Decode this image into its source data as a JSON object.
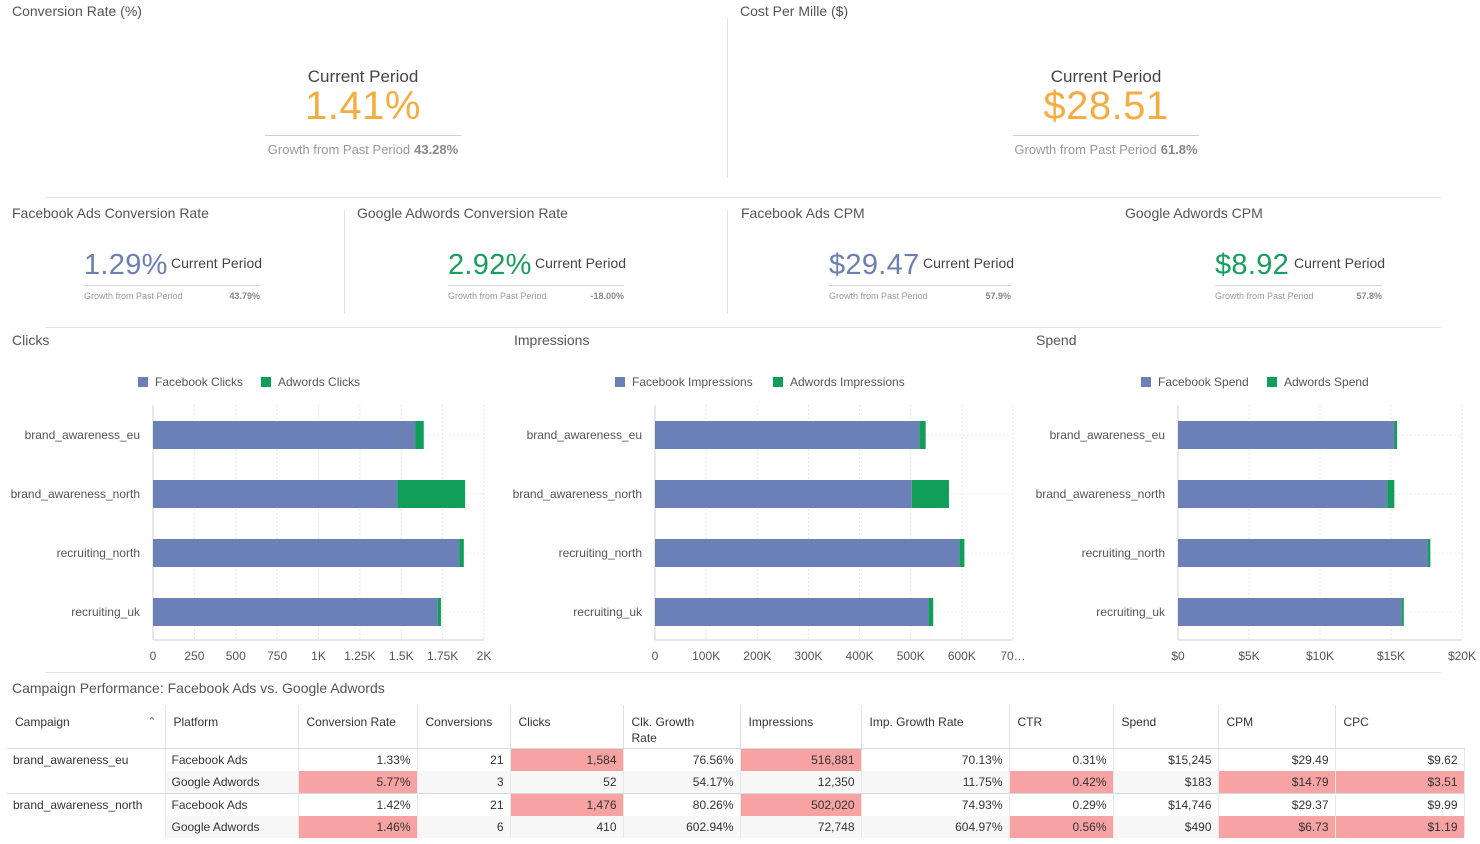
{
  "kpis_large": [
    {
      "title": "Conversion Rate (%)",
      "label": "Current Period",
      "value": "1.41%",
      "growth_label": "Growth from Past Period",
      "growth_value": "43.28%"
    },
    {
      "title": "Cost Per Mille ($)",
      "label": "Current Period",
      "value": "$28.51",
      "growth_label": "Growth from Past Period",
      "growth_value": "61.8%"
    }
  ],
  "kpis_small": [
    {
      "title": "Facebook Ads Conversion Rate",
      "value": "1.29%",
      "label": "Current Period",
      "growth_label": "Growth from Past Period",
      "growth_value": "43.79%",
      "color": "#6b7fb5"
    },
    {
      "title": "Google Adwords Conversion Rate",
      "value": "2.92%",
      "label": "Current Period",
      "growth_label": "Growth from Past Period",
      "growth_value": "-18.00%",
      "color": "#17a05a"
    },
    {
      "title": "Facebook Ads CPM",
      "value": "$29.47",
      "label": "Current Period",
      "growth_label": "Growth from Past Period",
      "growth_value": "57.9%",
      "color": "#6b7fb5"
    },
    {
      "title": "Google Adwords CPM",
      "value": "$8.92",
      "label": "Current Period",
      "growth_label": "Growth from Past Period",
      "growth_value": "57.8%",
      "color": "#17a05a"
    }
  ],
  "colors": {
    "facebook": "#6b80b6",
    "adwords": "#109e58",
    "accent": "#f5ad42",
    "highlight": "#f7a3a3"
  },
  "chart_data": [
    {
      "type": "bar",
      "orientation": "horizontal",
      "stacked": true,
      "title": "Clicks",
      "categories": [
        "brand_awareness_eu",
        "brand_awareness_north",
        "recruiting_north",
        "recruiting_uk"
      ],
      "series": [
        {
          "name": "Facebook Clicks",
          "values": [
            1584,
            1476,
            1850,
            1720
          ]
        },
        {
          "name": "Adwords Clicks",
          "values": [
            52,
            410,
            28,
            20
          ]
        }
      ],
      "xlim": [
        0,
        2000
      ],
      "ticks": [
        "0",
        "250",
        "500",
        "750",
        "1K",
        "1.25K",
        "1.5K",
        "1.75K",
        "2K"
      ],
      "legend": "top",
      "grid": true
    },
    {
      "type": "bar",
      "orientation": "horizontal",
      "stacked": true,
      "title": "Impressions",
      "categories": [
        "brand_awareness_eu",
        "brand_awareness_north",
        "recruiting_north",
        "recruiting_uk"
      ],
      "series": [
        {
          "name": "Facebook Impressions",
          "values": [
            516881,
            502020,
            595000,
            535000
          ]
        },
        {
          "name": "Adwords Impressions",
          "values": [
            12350,
            72748,
            10000,
            9000
          ]
        }
      ],
      "xlim": [
        0,
        700000
      ],
      "ticks": [
        "0",
        "100K",
        "200K",
        "300K",
        "400K",
        "500K",
        "600K",
        "70…"
      ],
      "legend": "top",
      "grid": true
    },
    {
      "type": "bar",
      "orientation": "horizontal",
      "stacked": true,
      "title": "Spend",
      "categories": [
        "brand_awareness_eu",
        "brand_awareness_north",
        "recruiting_north",
        "recruiting_uk"
      ],
      "series": [
        {
          "name": "Facebook Spend",
          "values": [
            15245,
            14746,
            17600,
            15750
          ]
        },
        {
          "name": "Adwords Spend",
          "values": [
            183,
            490,
            170,
            150
          ]
        }
      ],
      "xlim": [
        0,
        20000
      ],
      "ticks": [
        "$0",
        "$5K",
        "$10K",
        "$15K",
        "$20K"
      ],
      "legend": "top",
      "grid": true
    }
  ],
  "table": {
    "title": "Campaign Performance: Facebook Ads vs. Google Adwords",
    "sort_icon": "chevron-up-icon",
    "headers": [
      "Campaign",
      "Platform",
      "Conversion Rate",
      "Conversions",
      "Clicks",
      "Clk. Growth Rate",
      "Impressions",
      "Imp. Growth Rate",
      "CTR",
      "Spend",
      "CPM",
      "CPC"
    ],
    "groups": [
      {
        "campaign": "brand_awareness_eu",
        "rows": [
          {
            "cells": [
              "Facebook Ads",
              "1.33%",
              "21",
              "1,584",
              "76.56%",
              "516,881",
              "70.13%",
              "0.31%",
              "$15,245",
              "$29.49",
              "$9.62"
            ],
            "hl": [
              false,
              false,
              false,
              true,
              false,
              true,
              false,
              false,
              false,
              false,
              false
            ]
          },
          {
            "cells": [
              "Google Adwords",
              "5.77%",
              "3",
              "52",
              "54.17%",
              "12,350",
              "11.75%",
              "0.42%",
              "$183",
              "$14.79",
              "$3.51"
            ],
            "hl": [
              false,
              true,
              false,
              false,
              false,
              false,
              false,
              true,
              false,
              true,
              true
            ]
          }
        ]
      },
      {
        "campaign": "brand_awareness_north",
        "rows": [
          {
            "cells": [
              "Facebook Ads",
              "1.42%",
              "21",
              "1,476",
              "80.26%",
              "502,020",
              "74.93%",
              "0.29%",
              "$14,746",
              "$29.37",
              "$9.99"
            ],
            "hl": [
              false,
              false,
              false,
              true,
              false,
              true,
              false,
              false,
              false,
              false,
              false
            ]
          },
          {
            "cells": [
              "Google Adwords",
              "1.46%",
              "6",
              "410",
              "602.94%",
              "72,748",
              "604.97%",
              "0.56%",
              "$490",
              "$6.73",
              "$1.19"
            ],
            "hl": [
              false,
              true,
              false,
              false,
              false,
              false,
              false,
              true,
              false,
              true,
              true
            ]
          }
        ]
      }
    ]
  }
}
